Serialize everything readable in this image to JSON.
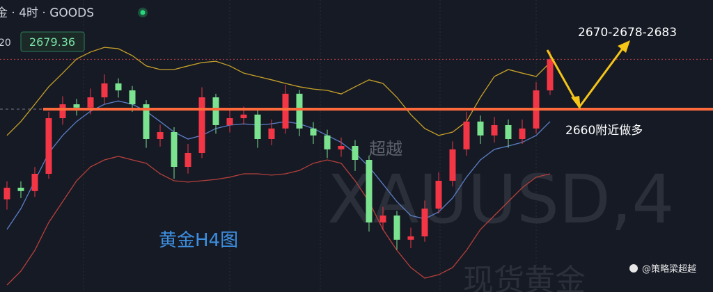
{
  "header": {
    "symbol": "金 · 4时 · GOODS",
    "period_label": "20"
  },
  "chart_data": {
    "type": "candlestick",
    "ylim": [
      2589,
      2702.4
    ],
    "last_price": 2679.36,
    "up_color": "#f23645",
    "down_color": "#7be38f",
    "open": [
      2625.0,
      2629.5,
      2628.2,
      2634.9,
      2656.5,
      2661.9,
      2660.6,
      2664.6,
      2670.0,
      2667.3,
      2661.9,
      2648.4,
      2651.1,
      2637.6,
      2643.0,
      2664.6,
      2653.8,
      2656.5,
      2657.9,
      2648.4,
      2652.5,
      2666.0,
      2652.5,
      2649.8,
      2644.4,
      2645.7,
      2640.3,
      2616.0,
      2618.7,
      2609.3,
      2610.6,
      2621.4,
      2632.2,
      2644.4,
      2655.2,
      2649.8,
      2653.8,
      2648.4,
      2652.5,
      2667.3
    ],
    "high": [
      2632.0,
      2632.0,
      2637.5,
      2659.0,
      2665.0,
      2664.0,
      2668.0,
      2673.5,
      2672.0,
      2669.0,
      2663.5,
      2654.0,
      2653.0,
      2646.5,
      2668.5,
      2666.0,
      2660.0,
      2661.0,
      2659.5,
      2656.0,
      2669.5,
      2667.5,
      2655.0,
      2652.0,
      2649.0,
      2648.0,
      2642.0,
      2622.0,
      2620.5,
      2614.0,
      2624.5,
      2635.5,
      2647.5,
      2659.0,
      2657.5,
      2657.0,
      2656.0,
      2656.0,
      2670.5,
      2682.5
    ],
    "low": [
      2621.0,
      2625.5,
      2626.0,
      2633.0,
      2654.0,
      2657.5,
      2658.0,
      2662.0,
      2664.5,
      2659.0,
      2645.0,
      2645.5,
      2633.0,
      2635.0,
      2641.0,
      2650.5,
      2651.0,
      2654.0,
      2645.0,
      2646.0,
      2650.5,
      2649.5,
      2646.5,
      2641.0,
      2641.5,
      2636.0,
      2612.5,
      2613.0,
      2605.5,
      2606.0,
      2608.5,
      2619.5,
      2630.0,
      2642.0,
      2646.5,
      2647.0,
      2645.0,
      2646.5,
      2650.5,
      2665.5
    ],
    "close": [
      2629.5,
      2628.2,
      2634.9,
      2656.5,
      2661.9,
      2660.6,
      2664.6,
      2670.0,
      2667.3,
      2661.9,
      2648.4,
      2651.1,
      2637.6,
      2643.0,
      2664.6,
      2653.8,
      2656.5,
      2657.9,
      2648.4,
      2652.5,
      2666.0,
      2652.5,
      2649.8,
      2644.4,
      2645.7,
      2640.3,
      2616.0,
      2618.7,
      2609.3,
      2610.6,
      2621.4,
      2632.2,
      2644.4,
      2655.2,
      2649.8,
      2653.8,
      2648.4,
      2652.5,
      2667.3,
      2679.4
    ],
    "lines": [
      {
        "color": "#c9a227",
        "values": [
          2649.8,
          2655.2,
          2661.9,
          2668.7,
          2674.0,
          2679.5,
          2682.2,
          2684.0,
          2683.5,
          2680.8,
          2676.8,
          2675.4,
          2675.4,
          2676.8,
          2678.1,
          2678.6,
          2676.8,
          2674.0,
          2672.7,
          2671.4,
          2670.0,
          2668.7,
          2667.8,
          2667.3,
          2665.9,
          2668.7,
          2671.4,
          2670.0,
          2664.6,
          2657.9,
          2652.5,
          2649.8,
          2651.1,
          2655.2,
          2664.6,
          2672.7,
          2675.4,
          2674.0,
          2672.7,
          2678.1
        ]
      },
      {
        "color": "#5b7fc7",
        "values": [
          2613.3,
          2621.4,
          2632.2,
          2643.0,
          2649.8,
          2655.2,
          2659.2,
          2661.9,
          2663.2,
          2661.9,
          2659.2,
          2655.2,
          2651.1,
          2648.4,
          2649.8,
          2652.5,
          2653.8,
          2654.3,
          2653.8,
          2654.3,
          2655.2,
          2654.3,
          2652.5,
          2649.8,
          2647.1,
          2643.0,
          2637.6,
          2630.9,
          2624.1,
          2618.7,
          2617.4,
          2620.1,
          2625.5,
          2633.6,
          2640.3,
          2644.4,
          2645.7,
          2647.1,
          2649.8,
          2655.2
        ]
      },
      {
        "color": "#b5403a",
        "values": [
          2591.7,
          2597.1,
          2605.2,
          2616.0,
          2624.1,
          2632.2,
          2637.6,
          2640.3,
          2641.7,
          2640.3,
          2639.0,
          2634.9,
          2632.2,
          2631.7,
          2632.2,
          2632.7,
          2633.6,
          2634.9,
          2634.9,
          2634.4,
          2634.9,
          2636.2,
          2639.0,
          2640.3,
          2639.0,
          2632.2,
          2624.1,
          2613.3,
          2605.2,
          2598.5,
          2594.4,
          2595.7,
          2598.5,
          2605.2,
          2613.3,
          2618.7,
          2624.1,
          2629.5,
          2633.6,
          2634.9
        ]
      }
    ],
    "hlines": [
      {
        "value": 2660,
        "color": "#ff6a3d",
        "label": "2660附近做多"
      }
    ],
    "annotations": [
      "2670-2678-2683",
      "黄金H4图"
    ],
    "watermarks": [
      "超越",
      "XAUUSD,4",
      "现货黄金"
    ],
    "credit": "@策略梁超越"
  }
}
